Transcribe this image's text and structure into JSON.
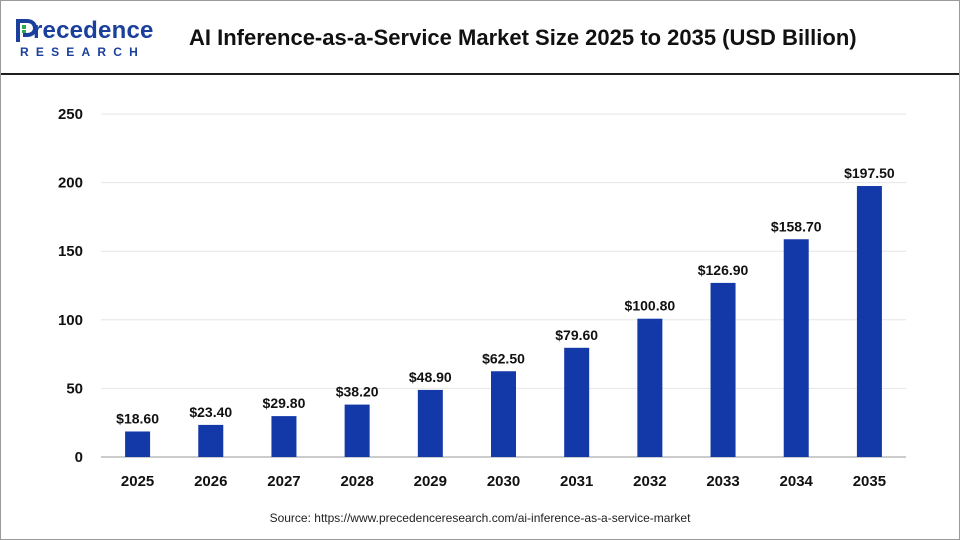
{
  "header": {
    "logo_word": "recedence",
    "logo_initial": "P",
    "logo_sub": "RESEARCH",
    "title": "AI Inference-as-a-Service Market Size 2025 to 2035 (USD Billion)"
  },
  "footer": {
    "source": "Source: https://www.precedenceresearch.com/ai-inference-as-a-service-market"
  },
  "colors": {
    "bar": "#1338a8",
    "brand": "#1a3f9c",
    "accent": "#2fa84f"
  },
  "chart_data": {
    "type": "bar",
    "title": "AI Inference-as-a-Service Market Size 2025 to 2035 (USD Billion)",
    "xlabel": "",
    "ylabel": "",
    "ylim": [
      0,
      250
    ],
    "yticks": [
      "0",
      "50",
      "100",
      "150",
      "200",
      "250"
    ],
    "grid": true,
    "legend": "none",
    "categories": [
      "2025",
      "2026",
      "2027",
      "2028",
      "2029",
      "2030",
      "2031",
      "2032",
      "2033",
      "2034",
      "2035"
    ],
    "values": [
      18.6,
      23.4,
      29.8,
      38.2,
      48.9,
      62.5,
      79.6,
      100.8,
      126.9,
      158.7,
      197.5
    ],
    "data_labels": [
      "$18.60",
      "$23.40",
      "$29.80",
      "$38.20",
      "$48.90",
      "$62.50",
      "$79.60",
      "$100.80",
      "$126.90",
      "$158.70",
      "$197.50"
    ]
  }
}
